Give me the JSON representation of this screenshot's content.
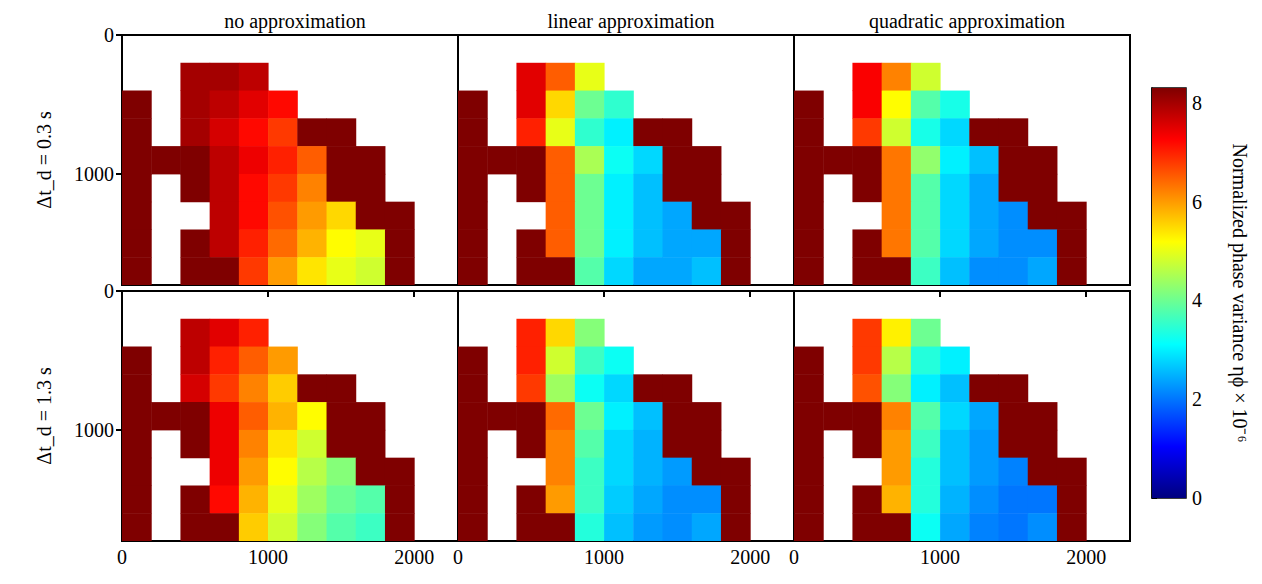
{
  "chart_data": {
    "type": "heatmap",
    "columns": [
      "no approximation",
      "linear approximation",
      "quadratic approximation"
    ],
    "rows": [
      "Δt_d = 0.3 s",
      "Δt_d = 1.3 s"
    ],
    "xlim": [
      0,
      2300
    ],
    "xticks": [
      0,
      1000,
      2000
    ],
    "ylim": [
      0,
      1800
    ],
    "yticks": [
      0,
      1000
    ],
    "x": [
      100,
      300,
      500,
      700,
      900,
      1100,
      1300,
      1500,
      1700,
      1900,
      2100
    ],
    "y": [
      100,
      300,
      500,
      700,
      900,
      1100,
      1300,
      1500,
      1700
    ],
    "panels": [
      {
        "cells": [
          [
            null,
            null,
            null,
            null,
            null,
            null,
            null,
            null,
            null,
            null,
            null
          ],
          [
            null,
            null,
            8,
            8,
            7.8,
            null,
            null,
            null,
            null,
            null,
            null
          ],
          [
            8.3,
            null,
            8,
            7.8,
            7.5,
            7.2,
            null,
            null,
            null,
            null,
            null
          ],
          [
            8.3,
            null,
            8,
            7.6,
            7.2,
            6.8,
            8.3,
            8.3,
            null,
            null,
            null
          ],
          [
            8.3,
            8.3,
            8.3,
            7.8,
            7.4,
            7,
            6.5,
            8.3,
            8.3,
            null,
            null
          ],
          [
            8.3,
            null,
            8.3,
            7.8,
            7.2,
            6.8,
            6.2,
            8.3,
            8.3,
            null,
            null
          ],
          [
            8.3,
            null,
            null,
            7.8,
            7.2,
            6.6,
            6,
            5.5,
            8.3,
            8.3,
            null
          ],
          [
            8.3,
            null,
            8.3,
            7.8,
            7,
            6.4,
            5.8,
            5.2,
            5,
            8.3,
            null
          ],
          [
            8.3,
            null,
            8.3,
            8.3,
            6.8,
            6,
            5.4,
            5,
            4.8,
            8.3,
            null
          ]
        ]
      },
      {
        "cells": [
          [
            null,
            null,
            null,
            null,
            null,
            null,
            null,
            null,
            null,
            null,
            null
          ],
          [
            null,
            null,
            7.5,
            6.5,
            5,
            null,
            null,
            null,
            null,
            null,
            null
          ],
          [
            8.3,
            null,
            7.5,
            5.5,
            4,
            3.5,
            null,
            null,
            null,
            null,
            null
          ],
          [
            8.3,
            null,
            7,
            5,
            3.5,
            3,
            8.3,
            8.3,
            null,
            null,
            null
          ],
          [
            8.3,
            8.3,
            8.3,
            6.5,
            4.5,
            3.2,
            2.8,
            8.3,
            8.3,
            null,
            null
          ],
          [
            8.3,
            null,
            8.3,
            6.5,
            4,
            3,
            2.6,
            8.3,
            8.3,
            null,
            null
          ],
          [
            8.3,
            null,
            null,
            6.5,
            4,
            3,
            2.6,
            2.4,
            8.3,
            8.3,
            null
          ],
          [
            8.3,
            null,
            8.3,
            6.5,
            4,
            3,
            2.6,
            2.4,
            2.4,
            8.3,
            null
          ],
          [
            8.3,
            null,
            8.3,
            8.3,
            3.8,
            2.8,
            2.4,
            2.4,
            2.6,
            8.3,
            null
          ]
        ]
      },
      {
        "cells": [
          [
            null,
            null,
            null,
            null,
            null,
            null,
            null,
            null,
            null,
            null,
            null
          ],
          [
            null,
            null,
            7.3,
            6.2,
            4.8,
            null,
            null,
            null,
            null,
            null,
            null
          ],
          [
            8.3,
            null,
            7.3,
            5.2,
            3.8,
            3.3,
            null,
            null,
            null,
            null,
            null
          ],
          [
            8.3,
            null,
            6.8,
            4.8,
            3.3,
            2.8,
            8.3,
            8.3,
            null,
            null,
            null
          ],
          [
            8.3,
            8.3,
            8.3,
            6.3,
            4.3,
            3,
            2.6,
            8.3,
            8.3,
            null,
            null
          ],
          [
            8.3,
            null,
            8.3,
            6.3,
            3.8,
            2.8,
            2.4,
            8.3,
            8.3,
            null,
            null
          ],
          [
            8.3,
            null,
            null,
            6.3,
            3.8,
            2.8,
            2.4,
            2.2,
            8.3,
            8.3,
            null
          ],
          [
            8.3,
            null,
            8.3,
            6.3,
            3.8,
            2.8,
            2.4,
            2.2,
            2.2,
            8.3,
            null
          ],
          [
            8.3,
            null,
            8.3,
            8.3,
            3.6,
            2.6,
            2.2,
            2.2,
            2.4,
            8.3,
            null
          ]
        ]
      },
      {
        "cells": [
          [
            null,
            null,
            null,
            null,
            null,
            null,
            null,
            null,
            null,
            null,
            null
          ],
          [
            null,
            null,
            7.8,
            7.5,
            7,
            null,
            null,
            null,
            null,
            null,
            null
          ],
          [
            8.3,
            null,
            7.8,
            7,
            6.5,
            6,
            null,
            null,
            null,
            null,
            null
          ],
          [
            8.3,
            null,
            7.6,
            6.8,
            6.2,
            5.6,
            8.3,
            8.3,
            null,
            null,
            null
          ],
          [
            8.3,
            8.3,
            8.3,
            7.4,
            6.5,
            5.8,
            5.2,
            8.3,
            8.3,
            null,
            null
          ],
          [
            8.3,
            null,
            8.3,
            7.4,
            6.2,
            5.4,
            4.8,
            8.3,
            8.3,
            null,
            null
          ],
          [
            8.3,
            null,
            null,
            7.4,
            6,
            5.2,
            4.6,
            4.2,
            8.3,
            8.3,
            null
          ],
          [
            8.3,
            null,
            8.3,
            7.2,
            5.8,
            5,
            4.4,
            4,
            3.8,
            8.3,
            null
          ],
          [
            8.3,
            null,
            8.3,
            8.3,
            5.6,
            4.8,
            4.2,
            3.8,
            3.6,
            8.3,
            null
          ]
        ]
      },
      {
        "cells": [
          [
            null,
            null,
            null,
            null,
            null,
            null,
            null,
            null,
            null,
            null,
            null
          ],
          [
            null,
            null,
            7,
            5.5,
            4.2,
            null,
            null,
            null,
            null,
            null,
            null
          ],
          [
            8.3,
            null,
            7,
            4.8,
            3.6,
            3.2,
            null,
            null,
            null,
            null,
            null
          ],
          [
            8.3,
            null,
            6.8,
            4.4,
            3.2,
            2.8,
            8.3,
            8.3,
            null,
            null,
            null
          ],
          [
            8.3,
            8.3,
            8.3,
            6.4,
            4,
            3,
            2.6,
            8.3,
            8.3,
            null,
            null
          ],
          [
            8.3,
            null,
            8.3,
            6.2,
            3.8,
            2.8,
            2.5,
            8.3,
            8.3,
            null,
            null
          ],
          [
            8.3,
            null,
            null,
            6.2,
            3.6,
            2.8,
            2.5,
            2.3,
            8.3,
            8.3,
            null
          ],
          [
            8.3,
            null,
            8.3,
            6,
            3.6,
            2.7,
            2.4,
            2.2,
            2.2,
            8.3,
            null
          ],
          [
            8.3,
            null,
            8.3,
            8.3,
            3.4,
            2.6,
            2.3,
            2.2,
            2.4,
            8.3,
            null
          ]
        ]
      },
      {
        "cells": [
          [
            null,
            null,
            null,
            null,
            null,
            null,
            null,
            null,
            null,
            null,
            null
          ],
          [
            null,
            null,
            6.8,
            5.3,
            4,
            null,
            null,
            null,
            null,
            null,
            null
          ],
          [
            8.3,
            null,
            6.8,
            4.6,
            3.4,
            3,
            null,
            null,
            null,
            null,
            null
          ],
          [
            8.3,
            null,
            6.6,
            4.2,
            3,
            2.6,
            8.3,
            8.3,
            null,
            null,
            null
          ],
          [
            8.3,
            8.3,
            8.3,
            6.2,
            3.8,
            2.8,
            2.4,
            8.3,
            8.3,
            null,
            null
          ],
          [
            8.3,
            null,
            8.3,
            6,
            3.6,
            2.6,
            2.3,
            8.3,
            8.3,
            null,
            null
          ],
          [
            8.3,
            null,
            null,
            6,
            3.4,
            2.6,
            2.3,
            2.1,
            8.3,
            8.3,
            null
          ],
          [
            8.3,
            null,
            8.3,
            5.8,
            3.4,
            2.5,
            2.2,
            2,
            2,
            8.3,
            null
          ],
          [
            8.3,
            null,
            8.3,
            8.3,
            3.2,
            2.4,
            2.1,
            2,
            2.2,
            8.3,
            null
          ]
        ]
      }
    ],
    "colorbar": {
      "range": [
        0,
        8.3
      ],
      "ticks": [
        0,
        2,
        4,
        6,
        8
      ],
      "label": "Normalized phase variance ηϕ × 10⁻⁶"
    }
  }
}
